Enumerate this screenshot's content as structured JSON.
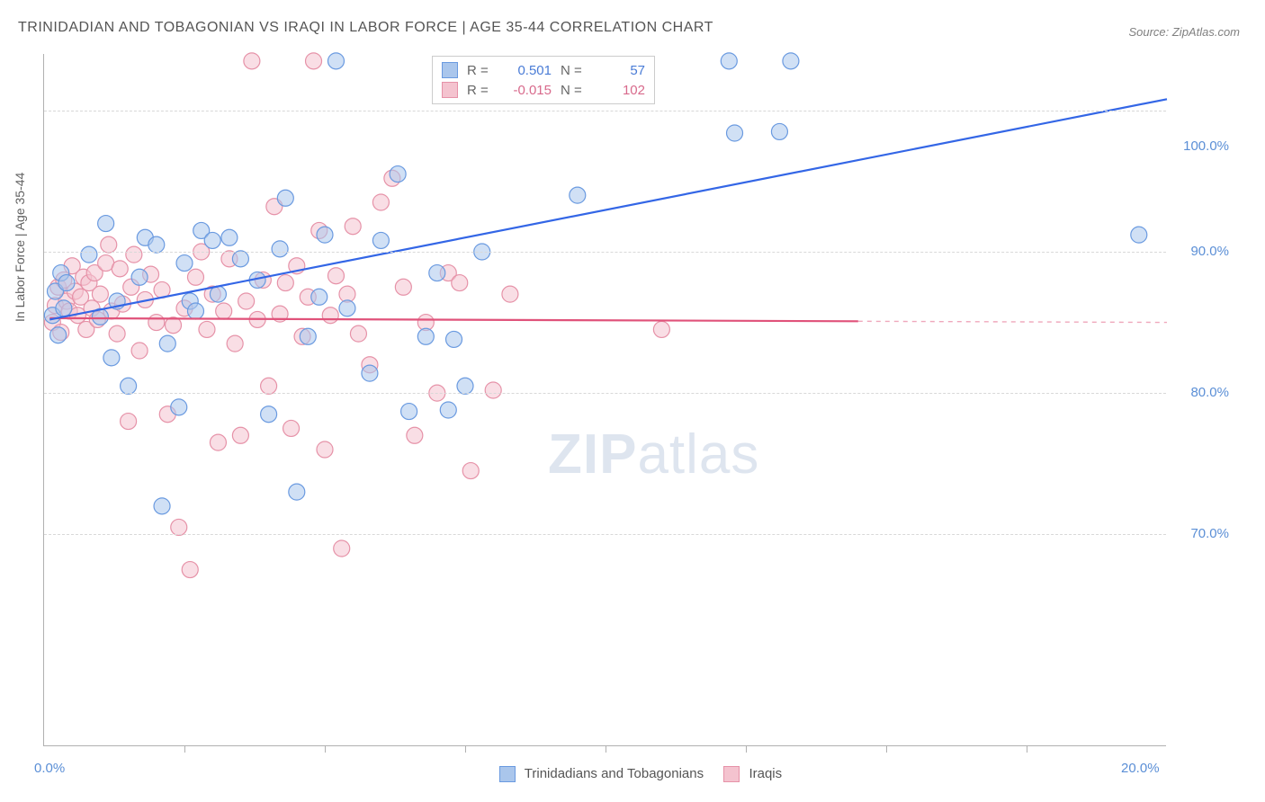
{
  "title": "TRINIDADIAN AND TOBAGONIAN VS IRAQI IN LABOR FORCE | AGE 35-44 CORRELATION CHART",
  "source": "Source: ZipAtlas.com",
  "y_axis_label": "In Labor Force | Age 35-44",
  "watermark": "ZIPatlas",
  "chart": {
    "type": "scatter",
    "xlim": [
      0,
      20
    ],
    "ylim": [
      55,
      104
    ],
    "x_ticks": [
      0,
      20
    ],
    "x_tick_labels": [
      "0.0%",
      "20.0%"
    ],
    "x_minor_ticks": [
      2.5,
      5,
      7.5,
      10,
      12.5,
      15,
      17.5
    ],
    "y_ticks": [
      70,
      80,
      90,
      100
    ],
    "y_tick_labels": [
      "70.0%",
      "80.0%",
      "90.0%",
      "100.0%"
    ],
    "grid_color": "#d8d8d8",
    "axis_color": "#b0b0b0",
    "background_color": "#ffffff",
    "marker_radius": 9,
    "marker_opacity": 0.55,
    "marker_stroke_width": 1.2,
    "line_width": 2.2
  },
  "series": {
    "trinidadian": {
      "label": "Trinidadians and Tobagonians",
      "color_fill": "#aac6ec",
      "color_stroke": "#6a9ae0",
      "line_color": "#3366e6",
      "regression": {
        "x1": 0.1,
        "y1": 85.2,
        "x2": 20,
        "y2": 100.8
      },
      "R": "0.501",
      "N": "57",
      "value_color": "#4a7cd6",
      "points": [
        [
          0.15,
          85.5
        ],
        [
          0.2,
          87.2
        ],
        [
          0.25,
          84.1
        ],
        [
          0.3,
          88.5
        ],
        [
          0.35,
          86.0
        ],
        [
          0.4,
          87.8
        ],
        [
          0.8,
          89.8
        ],
        [
          1.0,
          85.4
        ],
        [
          1.1,
          92.0
        ],
        [
          1.2,
          82.5
        ],
        [
          1.3,
          86.5
        ],
        [
          1.5,
          80.5
        ],
        [
          1.7,
          88.2
        ],
        [
          1.8,
          91.0
        ],
        [
          2.0,
          90.5
        ],
        [
          2.1,
          72.0
        ],
        [
          2.2,
          83.5
        ],
        [
          2.4,
          79.0
        ],
        [
          2.5,
          89.2
        ],
        [
          2.6,
          86.5
        ],
        [
          2.7,
          85.8
        ],
        [
          2.8,
          91.5
        ],
        [
          3.0,
          90.8
        ],
        [
          3.1,
          87.0
        ],
        [
          3.3,
          91.0
        ],
        [
          3.5,
          89.5
        ],
        [
          3.8,
          88.0
        ],
        [
          4.0,
          78.5
        ],
        [
          4.2,
          90.2
        ],
        [
          4.3,
          93.8
        ],
        [
          4.5,
          73.0
        ],
        [
          4.7,
          84.0
        ],
        [
          4.9,
          86.8
        ],
        [
          5.0,
          91.2
        ],
        [
          5.2,
          103.5
        ],
        [
          5.4,
          86.0
        ],
        [
          5.8,
          81.4
        ],
        [
          6.0,
          90.8
        ],
        [
          6.3,
          95.5
        ],
        [
          6.5,
          78.7
        ],
        [
          6.8,
          84.0
        ],
        [
          7.0,
          88.5
        ],
        [
          7.2,
          78.8
        ],
        [
          7.3,
          83.8
        ],
        [
          7.5,
          80.5
        ],
        [
          7.8,
          90.0
        ],
        [
          9.5,
          94.0
        ],
        [
          12.2,
          103.5
        ],
        [
          12.3,
          98.4
        ],
        [
          13.1,
          98.5
        ],
        [
          13.3,
          103.5
        ],
        [
          19.5,
          91.2
        ]
      ]
    },
    "iraqi": {
      "label": "Iraqis",
      "color_fill": "#f4c3cf",
      "color_stroke": "#e692a8",
      "line_color": "#e0527a",
      "regression": {
        "x1": 0.1,
        "y1": 85.3,
        "x2": 14.5,
        "y2": 85.08,
        "x3": 20,
        "y3": 85.0
      },
      "R": "-0.015",
      "N": "102",
      "value_color": "#d86a8c",
      "points": [
        [
          0.15,
          85.0
        ],
        [
          0.2,
          86.2
        ],
        [
          0.25,
          87.5
        ],
        [
          0.3,
          84.3
        ],
        [
          0.35,
          88.0
        ],
        [
          0.4,
          86.5
        ],
        [
          0.45,
          85.8
        ],
        [
          0.5,
          89.0
        ],
        [
          0.55,
          87.2
        ],
        [
          0.6,
          85.5
        ],
        [
          0.65,
          86.8
        ],
        [
          0.7,
          88.2
        ],
        [
          0.75,
          84.5
        ],
        [
          0.8,
          87.8
        ],
        [
          0.85,
          86.0
        ],
        [
          0.9,
          88.5
        ],
        [
          0.95,
          85.2
        ],
        [
          1.0,
          87.0
        ],
        [
          1.1,
          89.2
        ],
        [
          1.15,
          90.5
        ],
        [
          1.2,
          85.8
        ],
        [
          1.3,
          84.2
        ],
        [
          1.35,
          88.8
        ],
        [
          1.4,
          86.3
        ],
        [
          1.5,
          78.0
        ],
        [
          1.55,
          87.5
        ],
        [
          1.6,
          89.8
        ],
        [
          1.7,
          83.0
        ],
        [
          1.8,
          86.6
        ],
        [
          1.9,
          88.4
        ],
        [
          2.0,
          85.0
        ],
        [
          2.1,
          87.3
        ],
        [
          2.2,
          78.5
        ],
        [
          2.3,
          84.8
        ],
        [
          2.4,
          70.5
        ],
        [
          2.5,
          86.0
        ],
        [
          2.6,
          67.5
        ],
        [
          2.7,
          88.2
        ],
        [
          2.8,
          90.0
        ],
        [
          2.9,
          84.5
        ],
        [
          3.0,
          87.0
        ],
        [
          3.1,
          76.5
        ],
        [
          3.2,
          85.8
        ],
        [
          3.3,
          89.5
        ],
        [
          3.4,
          83.5
        ],
        [
          3.5,
          77.0
        ],
        [
          3.6,
          86.5
        ],
        [
          3.7,
          103.5
        ],
        [
          3.8,
          85.2
        ],
        [
          3.9,
          88.0
        ],
        [
          4.0,
          80.5
        ],
        [
          4.1,
          93.2
        ],
        [
          4.2,
          85.6
        ],
        [
          4.3,
          87.8
        ],
        [
          4.4,
          77.5
        ],
        [
          4.5,
          89.0
        ],
        [
          4.6,
          84.0
        ],
        [
          4.7,
          86.8
        ],
        [
          4.8,
          103.5
        ],
        [
          4.9,
          91.5
        ],
        [
          5.0,
          76.0
        ],
        [
          5.1,
          85.5
        ],
        [
          5.2,
          88.3
        ],
        [
          5.3,
          69.0
        ],
        [
          5.4,
          87.0
        ],
        [
          5.5,
          91.8
        ],
        [
          5.6,
          84.2
        ],
        [
          5.8,
          82.0
        ],
        [
          6.0,
          93.5
        ],
        [
          6.2,
          95.2
        ],
        [
          6.4,
          87.5
        ],
        [
          6.6,
          77.0
        ],
        [
          6.8,
          85.0
        ],
        [
          7.0,
          80.0
        ],
        [
          7.2,
          88.5
        ],
        [
          7.4,
          87.8
        ],
        [
          7.6,
          74.5
        ],
        [
          8.0,
          80.2
        ],
        [
          8.3,
          87.0
        ],
        [
          11.0,
          84.5
        ]
      ]
    }
  },
  "legend_top": {
    "r_label": "R =",
    "n_label": "N ="
  },
  "legend_bottom": {
    "items": [
      "trinidadian",
      "iraqi"
    ]
  }
}
